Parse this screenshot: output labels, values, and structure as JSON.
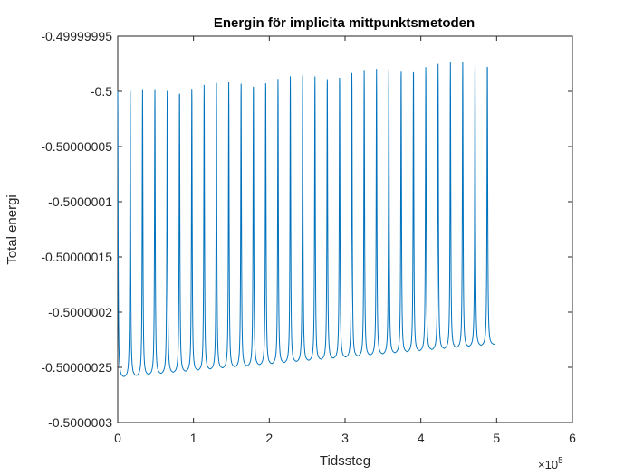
{
  "chart_data": {
    "type": "line",
    "title": "Energin för implicita mittpunktsmetoden",
    "xlabel": "Tidssteg",
    "ylabel": "Total energi",
    "x_exponent_label": "×10",
    "x_exponent": "5",
    "xlim": [
      0,
      6
    ],
    "ylim": [
      -0.5000003,
      -0.49999995
    ],
    "x_ticks": [
      0,
      1,
      2,
      3,
      4,
      5,
      6
    ],
    "x_tick_labels": [
      "0",
      "1",
      "2",
      "3",
      "4",
      "5",
      "6"
    ],
    "y_ticks": [
      -0.49999995,
      -0.5,
      -0.50000005,
      -0.5000001,
      -0.50000015,
      -0.5000002,
      -0.50000025,
      -0.5000003
    ],
    "y_tick_labels": [
      "-0.49999995",
      "-0.5",
      "-0.50000005",
      "-0.5000001",
      "-0.50000015",
      "-0.5000002",
      "-0.50000025",
      "-0.5000003"
    ],
    "grid": false,
    "series": [
      {
        "color": "#0072bd",
        "x_start": 0,
        "x_end": 4.98,
        "initial_value": -0.5,
        "spike_period": 0.1625,
        "spike_count": 30,
        "spike_first_x": 0.165,
        "baseline_start": -0.50000026,
        "baseline_end": -0.50000023,
        "peak_start": -0.5,
        "peak_end": -0.49999997
      }
    ]
  }
}
